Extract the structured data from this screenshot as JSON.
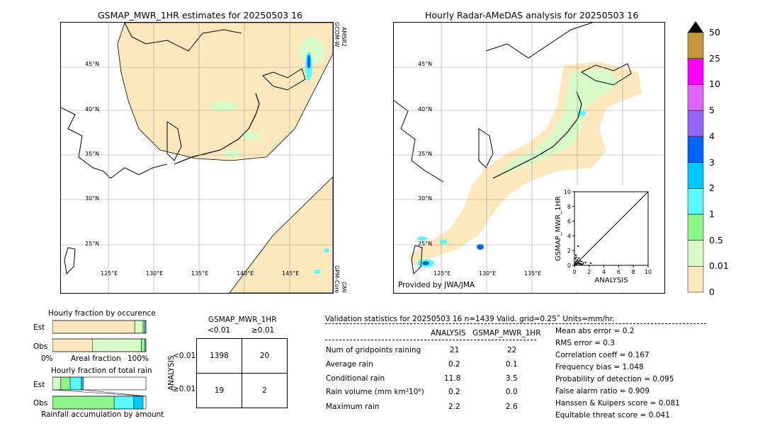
{
  "left_map": {
    "title": "GSMAP_MWR_1HR estimates for 20250503 16",
    "lat_labels": [
      "45°N",
      "40°N",
      "35°N",
      "30°N",
      "25°N"
    ],
    "lon_labels": [
      "125°E",
      "130°E",
      "135°E",
      "140°E",
      "145°E"
    ],
    "sat_top": "GCOM-W\nAMSR2",
    "sat_top_1": "GCOM-W",
    "sat_top_2": "AMSR2",
    "sat_bottom_1": "GPM-Core",
    "sat_bottom_2": "GMI"
  },
  "right_map": {
    "title": "Hourly Radar-AMeDAS analysis for 20250503 16",
    "lat_labels": [
      "45°N",
      "40°N",
      "35°N",
      "30°N",
      "25°N"
    ],
    "lon_labels": [
      "125°E",
      "130°E",
      "135°E"
    ],
    "credit": "Provided by JWA/JMA"
  },
  "colorbar": {
    "levels": [
      "0",
      "0.01",
      "0.5",
      "1",
      "2",
      "3",
      "4",
      "5",
      "10",
      "25",
      "50"
    ],
    "colors": [
      "#fde8bd",
      "#d7fbc8",
      "#8ef58a",
      "#5afafa",
      "#00c8ff",
      "#0064ff",
      "#9664ff",
      "#e164ff",
      "#ff00ff",
      "#c8963c",
      "#000000"
    ]
  },
  "chart_data": [
    {
      "type": "scatter",
      "title": "",
      "xlabel": "ANALYSIS",
      "ylabel": "GSMAP_MWR_1HR",
      "xlim": [
        0,
        10
      ],
      "ylim": [
        0,
        10
      ],
      "x_ticks": [
        "0",
        "2",
        "4",
        "6",
        "8",
        "10"
      ],
      "y_ticks": [
        "0",
        "2",
        "4",
        "6",
        "8",
        "10"
      ],
      "points": [
        [
          0.0,
          0.0
        ],
        [
          0.05,
          0.1
        ],
        [
          0.1,
          0.3
        ],
        [
          0.2,
          0.5
        ],
        [
          0.3,
          0.2
        ],
        [
          0.4,
          0.8
        ],
        [
          0.5,
          0.4
        ],
        [
          0.6,
          1.0
        ],
        [
          0.7,
          0.3
        ],
        [
          0.8,
          0.6
        ],
        [
          0.9,
          0.2
        ],
        [
          1.0,
          0.5
        ],
        [
          1.2,
          0.3
        ],
        [
          0.2,
          1.4
        ],
        [
          0.1,
          0.9
        ],
        [
          0.3,
          0.1
        ],
        [
          0.6,
          0.2
        ],
        [
          1.5,
          0.4
        ],
        [
          0.4,
          0.3
        ],
        [
          0.2,
          0.2
        ],
        [
          0.8,
          0.1
        ],
        [
          2.2,
          0.3
        ],
        [
          0.5,
          2.6
        ],
        [
          0.15,
          0.05
        ],
        [
          0.35,
          0.6
        ],
        [
          1.1,
          0.1
        ],
        [
          0.25,
          1.1
        ]
      ],
      "reference_line": "1:1"
    },
    {
      "type": "bar",
      "title": "Hourly fraction by occurence",
      "xlabel": "Areal fraction",
      "x_tick_left": "0%",
      "x_tick_right": "100%",
      "categories": [
        "Est",
        "Obs"
      ],
      "series": [
        {
          "values": [
            0.88,
            0.43
          ],
          "color": "#fde8bd"
        },
        {
          "values": [
            0.09,
            0.52
          ],
          "color": "#d7fbc8"
        },
        {
          "values": [
            0.02,
            0.04
          ],
          "color": "#8ef58a"
        },
        {
          "values": [
            0.01,
            0.01
          ],
          "color": "#5afafa"
        }
      ]
    },
    {
      "type": "bar",
      "title": "Hourly fraction of total rain",
      "xlabel": "Rainfall accumulation by amount",
      "categories": [
        "Est",
        "Obs"
      ],
      "series": [
        {
          "values": [
            0.09,
            0.0
          ],
          "color": "#d7fbc8"
        },
        {
          "values": [
            0.1,
            0.66
          ],
          "color": "#8ef58a"
        },
        {
          "values": [
            0.12,
            0.21
          ],
          "color": "#5afafa"
        },
        {
          "values": [
            0.02,
            0.1
          ],
          "color": "#00c8ff"
        }
      ]
    }
  ],
  "contingency": {
    "title": "GSMAP_MWR_1HR",
    "col_labels": [
      "<0.01",
      "≥0.01"
    ],
    "row_axis": "ANALYSIS",
    "row_labels": [
      "<0.01",
      "≥0.01"
    ],
    "cells": [
      [
        "1398",
        "20"
      ],
      [
        "19",
        "2"
      ]
    ]
  },
  "validation": {
    "header": "Validation statistics for 20250503 16  n=1439 Valid. grid=0.25˚ Units=mm/hr.",
    "col_analysis": "ANALYSIS",
    "col_gsmap": "GSMAP_MWR_1HR",
    "rows": [
      {
        "label": "Num of gridpoints raining",
        "analysis": "21",
        "gsmap": "22"
      },
      {
        "label": "Average rain",
        "analysis": "0.2",
        "gsmap": "0.1"
      },
      {
        "label": "Conditional rain",
        "analysis": "11.8",
        "gsmap": "3.5"
      },
      {
        "label": "Rain volume (mm km²10⁶)",
        "analysis": "0.2",
        "gsmap": "0.0"
      },
      {
        "label": "Maximum rain",
        "analysis": "2.2",
        "gsmap": "2.6"
      }
    ],
    "scores": [
      "Mean abs error =    0.2",
      "RMS error =    0.3",
      "Correlation coeff =  0.167",
      "Frequency bias =  1.048",
      "Probability of detection =  0.095",
      "False alarm ratio =  0.909",
      "Hanssen & Kuipers score =  0.081",
      "Equitable threat score =  0.041"
    ]
  }
}
